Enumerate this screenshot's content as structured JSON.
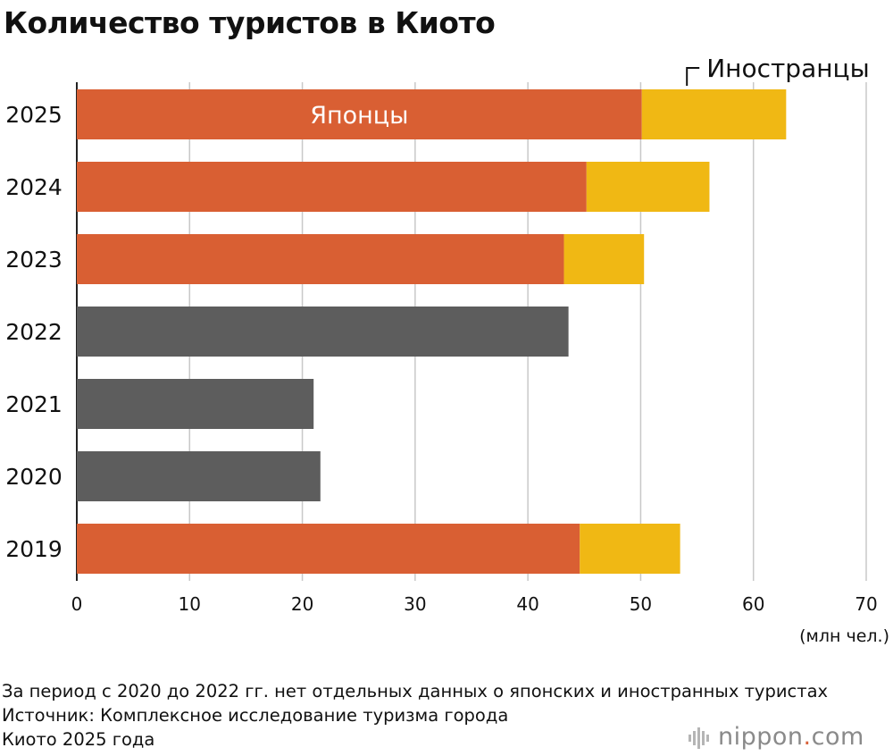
{
  "title": "Количество туристов в Киото",
  "chart_data": {
    "type": "bar",
    "orientation": "horizontal",
    "stacked": true,
    "categories": [
      "2025",
      "2024",
      "2023",
      "2022",
      "2021",
      "2020",
      "2019"
    ],
    "series": [
      {
        "name": "Японцы",
        "color": "#d95f33",
        "values": [
          50.1,
          45.2,
          43.2,
          null,
          null,
          null,
          44.6
        ]
      },
      {
        "name": "Иностранцы",
        "color": "#f0b814",
        "values": [
          12.8,
          10.9,
          7.1,
          null,
          null,
          null,
          8.9
        ]
      },
      {
        "name": "",
        "color": "#5d5d5d",
        "values": [
          null,
          null,
          null,
          43.6,
          21.0,
          21.6,
          null
        ]
      }
    ],
    "xlim": [
      0,
      70
    ],
    "x_ticks": [
      "0",
      "10",
      "20",
      "30",
      "40",
      "50",
      "60",
      "70"
    ],
    "unit_label": "(млн чел.)",
    "grid": true
  },
  "notes": [
    "За период с 2020 до 2022 гг. нет отдельных данных о японских и иностранных туристах",
    "Источник: Комплексное исследование туризма города",
    "Киото 2025 года"
  ],
  "brand": {
    "name": "nippon",
    "dot": ".",
    "suffix": "com"
  }
}
